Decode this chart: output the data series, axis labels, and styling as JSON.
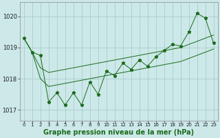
{
  "title": "Graphe pression niveau de la mer (hPa)",
  "bg_color": "#cce8e8",
  "grid_color": "#aacccc",
  "line_color": "#1a6b1a",
  "marker_color": "#1a6b1a",
  "x_values": [
    0,
    1,
    2,
    3,
    4,
    5,
    6,
    7,
    8,
    9,
    10,
    11,
    12,
    13,
    14,
    15,
    16,
    17,
    18,
    19,
    20,
    21,
    22,
    23
  ],
  "y_zigzag": [
    1019.3,
    1018.85,
    1018.75,
    1017.25,
    1017.55,
    1017.15,
    1017.55,
    1017.15,
    1017.9,
    1017.5,
    1018.25,
    1018.1,
    1018.5,
    1018.3,
    1018.6,
    1018.4,
    1018.7,
    1018.9,
    1019.1,
    1019.05,
    1019.5,
    1020.1,
    1019.95,
    1019.15
  ],
  "y_upper_env": [
    1019.3,
    1018.85,
    1018.35,
    1018.2,
    1018.25,
    1018.3,
    1018.35,
    1018.4,
    1018.45,
    1018.5,
    1018.55,
    1018.6,
    1018.65,
    1018.7,
    1018.75,
    1018.8,
    1018.85,
    1018.9,
    1018.95,
    1019.0,
    1019.1,
    1019.2,
    1019.3,
    1019.4
  ],
  "y_lower_env": [
    1019.3,
    1018.85,
    1018.0,
    1017.75,
    1017.8,
    1017.85,
    1017.9,
    1017.95,
    1018.0,
    1018.05,
    1018.1,
    1018.15,
    1018.2,
    1018.25,
    1018.3,
    1018.35,
    1018.4,
    1018.45,
    1018.5,
    1018.55,
    1018.65,
    1018.75,
    1018.85,
    1018.95
  ],
  "ylim_min": 1016.65,
  "ylim_max": 1020.45,
  "yticks": [
    1017,
    1018,
    1019,
    1020
  ],
  "xlabel_fontsize": 7,
  "marker": "*",
  "lw": 0.7,
  "ms": 3.5
}
